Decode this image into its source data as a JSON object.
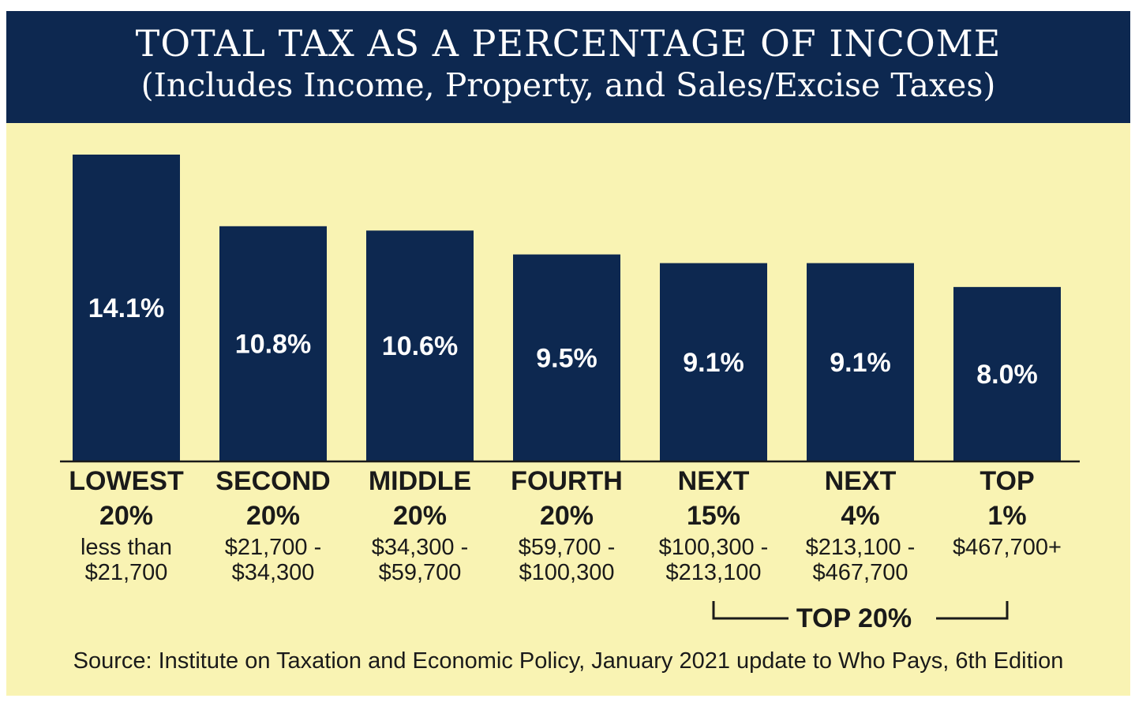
{
  "title": {
    "line1": "TOTAL TAX AS A PERCENTAGE OF INCOME",
    "line2": "(Includes Income, Property, and Sales/Excise Taxes)"
  },
  "source": "Source: Institute on Taxation and Economic Policy, January 2021 update to Who Pays, 6th Edition",
  "colors": {
    "bar": "#0d2850",
    "background": "#f9f3b3",
    "title_bar": "#0d2850"
  },
  "chart_data": {
    "type": "bar",
    "title": "TOTAL TAX AS A PERCENTAGE OF INCOME",
    "subtitle": "(Includes Income, Property, and Sales/Excise Taxes)",
    "categories": [
      "LOWEST 20%",
      "SECOND 20%",
      "MIDDLE 20%",
      "FOURTH 20%",
      "NEXT 15%",
      "NEXT 4%",
      "TOP 1%"
    ],
    "category_lines": [
      [
        "LOWEST",
        "20%"
      ],
      [
        "SECOND",
        "20%"
      ],
      [
        "MIDDLE",
        "20%"
      ],
      [
        "FOURTH",
        "20%"
      ],
      [
        "NEXT",
        "15%"
      ],
      [
        "NEXT",
        "4%"
      ],
      [
        "TOP",
        "1%"
      ]
    ],
    "income_ranges": [
      [
        "less than",
        "$21,700"
      ],
      [
        "$21,700 -",
        "$34,300"
      ],
      [
        "$34,300 -",
        "$59,700"
      ],
      [
        "$59,700 -",
        "$100,300"
      ],
      [
        "$100,300 -",
        "$213,100"
      ],
      [
        "$213,100 -",
        "$467,700"
      ],
      [
        "$467,700+"
      ]
    ],
    "values": [
      14.1,
      10.8,
      10.6,
      9.5,
      9.1,
      9.1,
      8.0
    ],
    "value_labels": [
      "14.1%",
      "10.8%",
      "10.6%",
      "9.5%",
      "9.1%",
      "9.1%",
      "8.0%"
    ],
    "unit": "%",
    "ylim": [
      0,
      14.1
    ],
    "grid": false,
    "group_annotation": {
      "label": "TOP 20%",
      "spans": [
        "NEXT 15%",
        "NEXT 4%",
        "TOP 1%"
      ]
    }
  }
}
